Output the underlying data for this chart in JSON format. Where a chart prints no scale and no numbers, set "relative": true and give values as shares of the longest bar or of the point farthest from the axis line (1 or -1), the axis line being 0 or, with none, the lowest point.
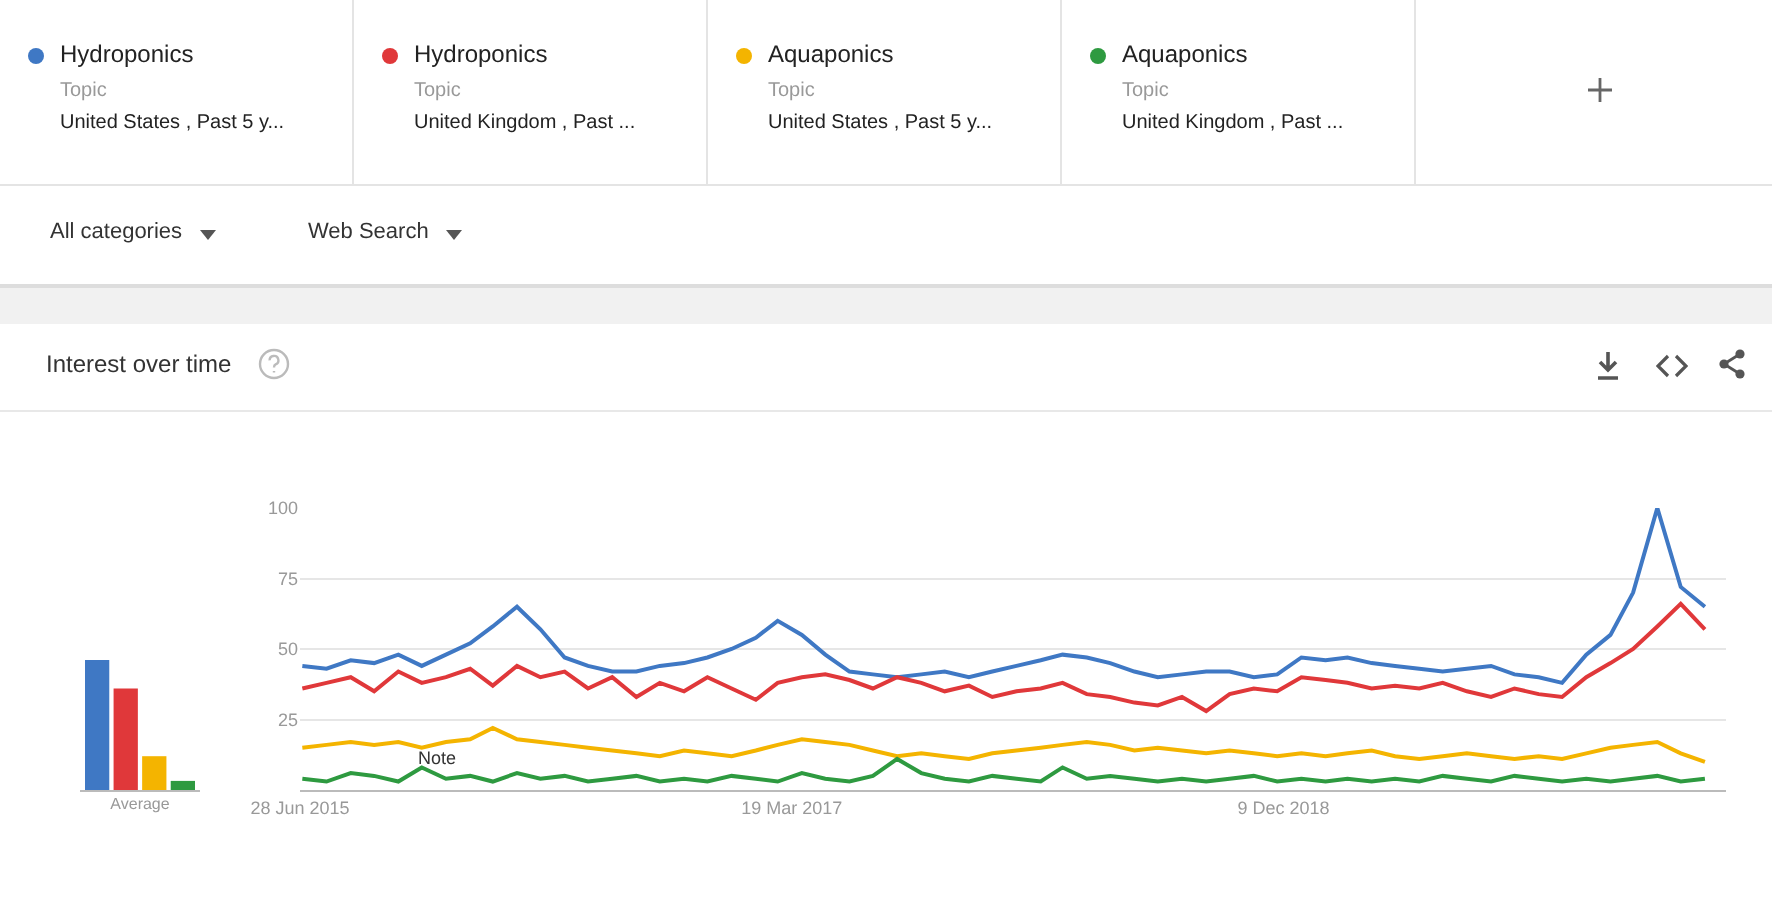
{
  "chart_data": [
    {
      "type": "line",
      "title": "Interest over time",
      "legend": "top",
      "grid": "y",
      "x": [
        "2015-07",
        "2015-08",
        "2015-09",
        "2015-10",
        "2015-11",
        "2015-12",
        "2016-01",
        "2016-02",
        "2016-03",
        "2016-04",
        "2016-05",
        "2016-06",
        "2016-07",
        "2016-08",
        "2016-09",
        "2016-10",
        "2016-11",
        "2016-12",
        "2017-01",
        "2017-02",
        "2017-03",
        "2017-04",
        "2017-05",
        "2017-06",
        "2017-07",
        "2017-08",
        "2017-09",
        "2017-10",
        "2017-11",
        "2017-12",
        "2018-01",
        "2018-02",
        "2018-03",
        "2018-04",
        "2018-05",
        "2018-06",
        "2018-07",
        "2018-08",
        "2018-09",
        "2018-10",
        "2018-11",
        "2018-12",
        "2019-01",
        "2019-02",
        "2019-03",
        "2019-04",
        "2019-05",
        "2019-06",
        "2019-07",
        "2019-08",
        "2019-09",
        "2019-10",
        "2019-11",
        "2019-12",
        "2020-01",
        "2020-02",
        "2020-03",
        "2020-04",
        "2020-05",
        "2020-06"
      ],
      "xlim": [
        "2015-06-28",
        "2020-06-28"
      ],
      "xticks": [
        {
          "value": "2015-06-28",
          "label": "28 Jun 2015"
        },
        {
          "value": "2017-03-19",
          "label": "19 Mar 2017"
        },
        {
          "value": "2018-12-09",
          "label": "9 Dec 2018"
        }
      ],
      "ylim": [
        0,
        100
      ],
      "yticks": [
        25,
        50,
        75,
        100
      ],
      "series": [
        {
          "name": "Hydroponics",
          "color": "#3f78c4",
          "values": [
            44,
            43,
            46,
            45,
            48,
            44,
            48,
            52,
            58,
            65,
            57,
            47,
            44,
            42,
            42,
            44,
            45,
            47,
            50,
            54,
            60,
            55,
            48,
            42,
            41,
            40,
            41,
            42,
            40,
            42,
            44,
            46,
            48,
            47,
            45,
            42,
            40,
            41,
            42,
            42,
            40,
            41,
            47,
            46,
            47,
            45,
            44,
            43,
            42,
            43,
            44,
            41,
            40,
            38,
            48,
            55,
            70,
            100,
            72,
            65
          ]
        },
        {
          "name": "Hydroponics",
          "color": "#e0383a",
          "values": [
            36,
            38,
            40,
            35,
            42,
            38,
            40,
            43,
            37,
            44,
            40,
            42,
            36,
            40,
            33,
            38,
            35,
            40,
            36,
            32,
            38,
            40,
            41,
            39,
            36,
            40,
            38,
            35,
            37,
            33,
            35,
            36,
            38,
            34,
            33,
            31,
            30,
            33,
            28,
            34,
            36,
            35,
            40,
            39,
            38,
            36,
            37,
            36,
            38,
            35,
            33,
            36,
            34,
            33,
            40,
            45,
            50,
            58,
            66,
            57
          ]
        },
        {
          "name": "Aquaponics",
          "color": "#f4b400",
          "values": [
            15,
            16,
            17,
            16,
            17,
            15,
            17,
            18,
            22,
            18,
            17,
            16,
            15,
            14,
            13,
            12,
            14,
            13,
            12,
            14,
            16,
            18,
            17,
            16,
            14,
            12,
            13,
            12,
            11,
            13,
            14,
            15,
            16,
            17,
            16,
            14,
            15,
            14,
            13,
            14,
            13,
            12,
            13,
            12,
            13,
            14,
            12,
            11,
            12,
            13,
            12,
            11,
            12,
            11,
            13,
            15,
            16,
            17,
            13,
            10
          ]
        },
        {
          "name": "Aquaponics",
          "color": "#2e9a40",
          "values": [
            4,
            3,
            6,
            5,
            3,
            8,
            4,
            5,
            3,
            6,
            4,
            5,
            3,
            4,
            5,
            3,
            4,
            3,
            5,
            4,
            3,
            6,
            4,
            3,
            5,
            11,
            6,
            4,
            3,
            5,
            4,
            3,
            8,
            4,
            5,
            4,
            3,
            4,
            3,
            4,
            5,
            3,
            4,
            3,
            4,
            3,
            4,
            3,
            5,
            4,
            3,
            5,
            4,
            3,
            4,
            3,
            4,
            5,
            3,
            4
          ]
        }
      ],
      "annotations": [
        "Topic",
        "United States , Past 5 y...",
        "Topic",
        "United Kingdom , Past ...",
        "Topic",
        "United States , Past 5 y...",
        "Topic",
        "United Kingdom , Past ...",
        "All categories",
        "Web Search",
        {
          "text": "Note",
          "x": "2015-12-20",
          "y": 5
        }
      ]
    },
    {
      "type": "bar",
      "relative": true,
      "xlabel": "Average",
      "categories": [
        null,
        null,
        null,
        null
      ],
      "values": [
        1,
        0.78,
        0.26,
        0.07
      ],
      "colors": [
        "#3f78c4",
        "#e0383a",
        "#f4b400",
        "#2e9a40"
      ]
    }
  ]
}
